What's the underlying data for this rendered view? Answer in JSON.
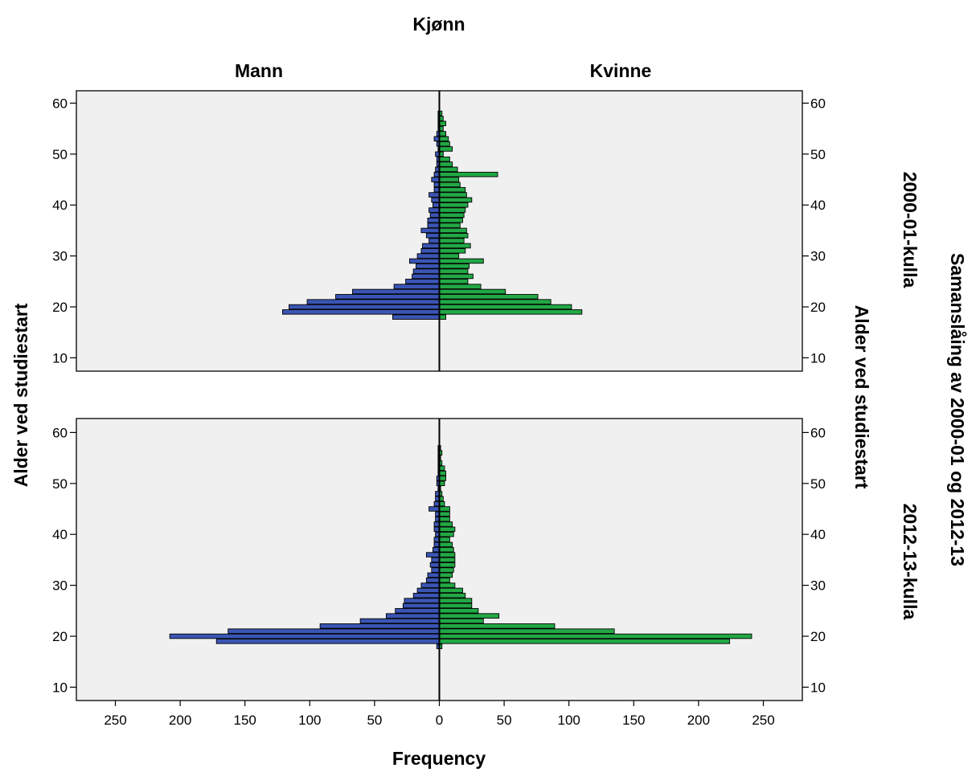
{
  "title": "Kjønn",
  "columns": [
    "Mann",
    "Kvinne"
  ],
  "xlabel": "Frequency",
  "ylabel": "Alder ved studiestart",
  "row_group_label": "Samanslåing av 2000-01 og 2012-13",
  "colors": {
    "male": "#3a55b4",
    "female": "#22a845",
    "panel_bg": "#f0f0f0"
  },
  "chart_data": [
    {
      "type": "bar",
      "orientation": "horizontal-population-pyramid",
      "panel_label": "2000-01-kulla",
      "x_ticks": [
        250,
        200,
        150,
        100,
        50,
        0,
        50,
        100,
        150,
        200,
        250
      ],
      "y_ticks": [
        10,
        20,
        30,
        40,
        50,
        60
      ],
      "ylim": [
        8,
        62
      ],
      "xlim": [
        -280,
        280
      ],
      "y": [
        18,
        19,
        20,
        21,
        22,
        23,
        24,
        25,
        26,
        27,
        28,
        29,
        30,
        31,
        32,
        33,
        34,
        35,
        36,
        37,
        38,
        39,
        40,
        41,
        42,
        43,
        44,
        45,
        46,
        47,
        48,
        49,
        50,
        51,
        52,
        53,
        54,
        55,
        56,
        57,
        58
      ],
      "series": [
        {
          "name": "Mann",
          "values": [
            36,
            121,
            116,
            102,
            80,
            67,
            35,
            26,
            21,
            20,
            18,
            23,
            17,
            14,
            13,
            8,
            10,
            14,
            9,
            9,
            7,
            8,
            5,
            6,
            8,
            4,
            4,
            6,
            4,
            3,
            2,
            2,
            3,
            1,
            2,
            4,
            2,
            1,
            1,
            1,
            1
          ]
        },
        {
          "name": "Kvinne",
          "values": [
            5,
            110,
            102,
            86,
            76,
            51,
            32,
            22,
            26,
            22,
            23,
            34,
            15,
            20,
            24,
            19,
            22,
            21,
            16,
            18,
            19,
            20,
            22,
            25,
            21,
            20,
            16,
            15,
            45,
            14,
            10,
            8,
            3,
            10,
            8,
            7,
            5,
            3,
            5,
            3,
            2
          ]
        }
      ]
    },
    {
      "type": "bar",
      "orientation": "horizontal-population-pyramid",
      "panel_label": "2012-13-kulla",
      "x_ticks": [
        250,
        200,
        150,
        100,
        50,
        0,
        50,
        100,
        150,
        200,
        250
      ],
      "y_ticks": [
        10,
        20,
        30,
        40,
        50,
        60
      ],
      "ylim": [
        8,
        62
      ],
      "xlim": [
        -280,
        280
      ],
      "y": [
        18,
        19,
        20,
        21,
        22,
        23,
        24,
        25,
        26,
        27,
        28,
        29,
        30,
        31,
        32,
        33,
        34,
        35,
        36,
        37,
        38,
        39,
        40,
        41,
        42,
        43,
        44,
        45,
        46,
        47,
        48,
        49,
        50,
        51,
        52,
        53,
        54,
        55,
        56,
        57
      ],
      "series": [
        {
          "name": "Mann",
          "values": [
            2,
            172,
            208,
            163,
            92,
            61,
            41,
            34,
            28,
            27,
            20,
            17,
            14,
            10,
            9,
            6,
            7,
            6,
            10,
            5,
            4,
            4,
            3,
            4,
            4,
            3,
            3,
            8,
            4,
            3,
            3,
            1,
            2,
            2,
            1,
            1,
            1,
            1,
            1,
            1
          ]
        },
        {
          "name": "Kvinne",
          "values": [
            2,
            224,
            241,
            135,
            89,
            34,
            46,
            30,
            25,
            25,
            20,
            18,
            12,
            8,
            10,
            11,
            12,
            12,
            12,
            11,
            10,
            8,
            11,
            12,
            10,
            8,
            8,
            8,
            4,
            3,
            2,
            1,
            4,
            5,
            5,
            4,
            2,
            1,
            2,
            1
          ]
        }
      ]
    }
  ]
}
